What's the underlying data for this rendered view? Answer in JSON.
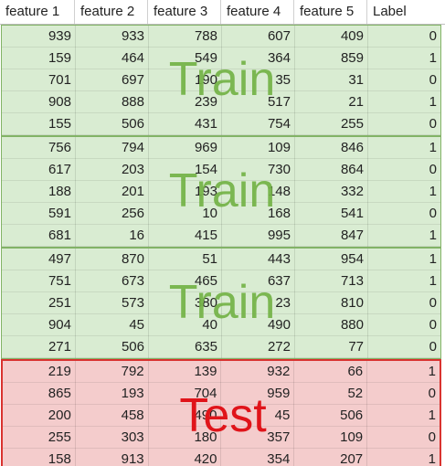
{
  "columns": [
    "feature 1",
    "feature 2",
    "feature 3",
    "feature 4",
    "feature 5",
    "Label"
  ],
  "colors": {
    "train_fill": "#d9ecd2",
    "train_border": "#82b366",
    "train_text": "#74b347",
    "test_fill": "#f4cccc",
    "test_border": "#d9322f",
    "test_text": "#e0141a"
  },
  "blocks": [
    {
      "label": "Train",
      "kind": "train",
      "rows": [
        [
          "939",
          "933",
          "788",
          "607",
          "409",
          "0"
        ],
        [
          "159",
          "464",
          "549",
          "364",
          "859",
          "1"
        ],
        [
          "701",
          "697",
          "190",
          "35",
          "31",
          "0"
        ],
        [
          "908",
          "888",
          "239",
          "517",
          "21",
          "1"
        ],
        [
          "155",
          "506",
          "431",
          "754",
          "255",
          "0"
        ]
      ]
    },
    {
      "label": "Train",
      "kind": "train",
      "rows": [
        [
          "756",
          "794",
          "969",
          "109",
          "846",
          "1"
        ],
        [
          "617",
          "203",
          "154",
          "730",
          "864",
          "0"
        ],
        [
          "188",
          "201",
          "193",
          "148",
          "332",
          "1"
        ],
        [
          "591",
          "256",
          "10",
          "168",
          "541",
          "0"
        ],
        [
          "681",
          "16",
          "415",
          "995",
          "847",
          "1"
        ]
      ]
    },
    {
      "label": "Train",
      "kind": "train",
      "rows": [
        [
          "497",
          "870",
          "51",
          "443",
          "954",
          "1"
        ],
        [
          "751",
          "673",
          "465",
          "637",
          "713",
          "1"
        ],
        [
          "251",
          "573",
          "380",
          "23",
          "810",
          "0"
        ],
        [
          "904",
          "45",
          "40",
          "490",
          "880",
          "0"
        ],
        [
          "271",
          "506",
          "635",
          "272",
          "77",
          "0"
        ]
      ]
    },
    {
      "label": "Test",
      "kind": "test",
      "rows": [
        [
          "219",
          "792",
          "139",
          "932",
          "66",
          "1"
        ],
        [
          "865",
          "193",
          "704",
          "959",
          "52",
          "0"
        ],
        [
          "200",
          "458",
          "490",
          "45",
          "506",
          "1"
        ],
        [
          "255",
          "303",
          "180",
          "357",
          "109",
          "0"
        ],
        [
          "158",
          "913",
          "420",
          "354",
          "207",
          "1"
        ]
      ]
    }
  ]
}
